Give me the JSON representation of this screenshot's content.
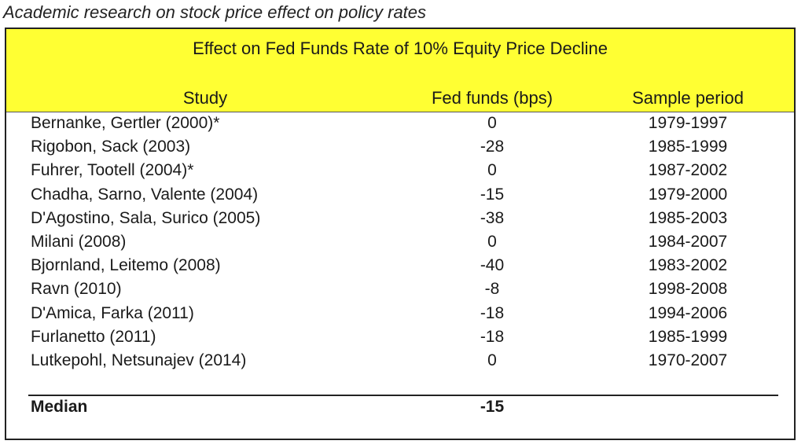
{
  "caption": "Academic research on stock price effect on policy rates",
  "table": {
    "title": "Effect on Fed Funds Rate of 10% Equity Price Decline",
    "headers": {
      "study": "Study",
      "fed_funds": "Fed funds (bps)",
      "sample_period": "Sample period"
    },
    "rows": [
      {
        "study": "Bernanke, Gertler (2000)*",
        "fed_funds": "0",
        "period": "1979-1997"
      },
      {
        "study": "Rigobon, Sack (2003)",
        "fed_funds": "-28",
        "period": "1985-1999"
      },
      {
        "study": "Fuhrer, Tootell (2004)*",
        "fed_funds": "0",
        "period": "1987-2002"
      },
      {
        "study": "Chadha, Sarno, Valente (2004)",
        "fed_funds": "-15",
        "period": "1979-2000"
      },
      {
        "study": "D'Agostino, Sala, Surico (2005)",
        "fed_funds": "-38",
        "period": "1985-2003"
      },
      {
        "study": "Milani (2008)",
        "fed_funds": "0",
        "period": "1984-2007"
      },
      {
        "study": "Bjornland, Leitemo (2008)",
        "fed_funds": "-40",
        "period": "1983-2002"
      },
      {
        "study": "Ravn (2010)",
        "fed_funds": "-8",
        "period": "1998-2008"
      },
      {
        "study": "D'Amica, Farka (2011)",
        "fed_funds": "-18",
        "period": "1994-2006"
      },
      {
        "study": "Furlanetto (2011)",
        "fed_funds": "-18",
        "period": "1985-1999"
      },
      {
        "study": "Lutkepohl, Netsunajev (2014)",
        "fed_funds": "0",
        "period": "1970-2007"
      }
    ],
    "median": {
      "label": "Median",
      "value": "-15"
    }
  },
  "colors": {
    "header_background": "#ffff33",
    "border": "#222222"
  }
}
